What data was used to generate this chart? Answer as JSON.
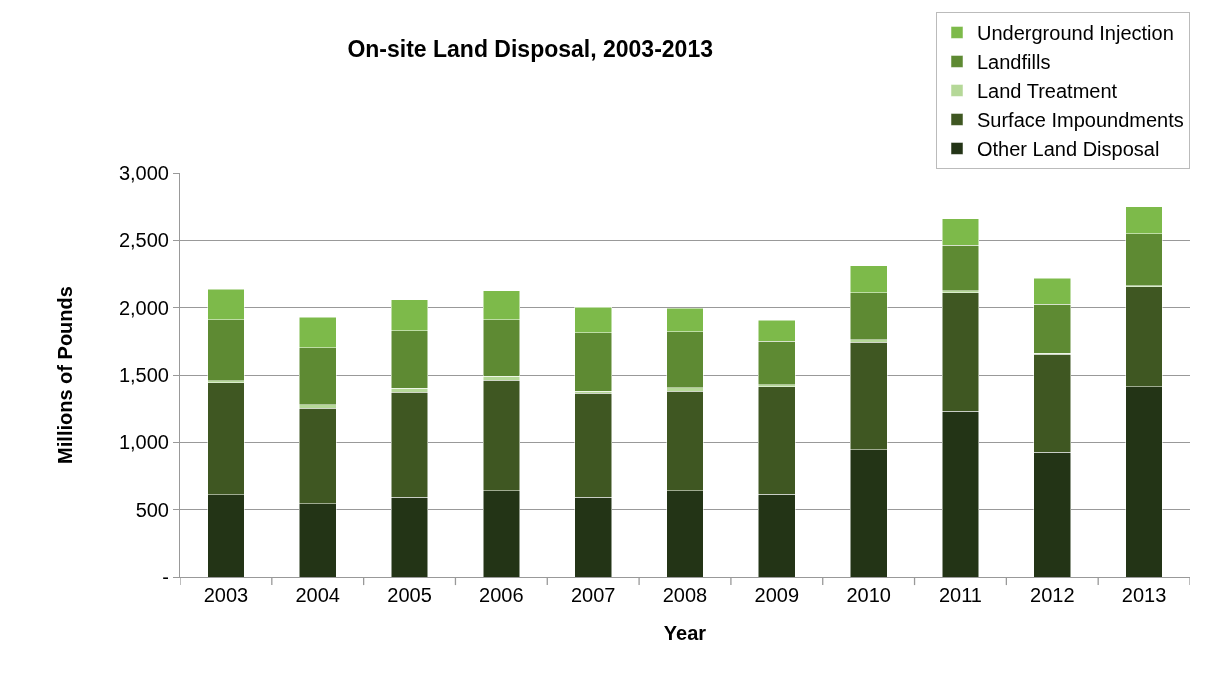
{
  "chart_data": {
    "type": "bar",
    "title": "On-site Land Disposal, 2003-2013",
    "xlabel": "Year",
    "ylabel": "Millions of Pounds",
    "categories": [
      "2003",
      "2004",
      "2005",
      "2006",
      "2007",
      "2008",
      "2009",
      "2010",
      "2011",
      "2012",
      "2013"
    ],
    "stacked": true,
    "series": [
      {
        "name": "Other Land Disposal",
        "color": "#233416",
        "values": [
          612,
          543,
          594,
          640,
          594,
          639,
          613,
          945,
          1231,
          926,
          1411
        ]
      },
      {
        "name": "Surface Impoundments",
        "color": "#3f5722",
        "values": [
          829,
          710,
          777,
          822,
          770,
          741,
          798,
          798,
          880,
          728,
          743
        ]
      },
      {
        "name": "Land Treatment",
        "color": "#b5d898",
        "values": [
          16,
          25,
          30,
          30,
          14,
          24,
          17,
          17,
          14,
          9,
          9
        ]
      },
      {
        "name": "Landfills",
        "color": "#5e8a33",
        "values": [
          452,
          425,
          427,
          417,
          434,
          416,
          322,
          351,
          339,
          364,
          385
        ]
      },
      {
        "name": "Underground Injection",
        "color": "#7dba4a",
        "values": [
          228,
          227,
          230,
          218,
          192,
          175,
          156,
          199,
          195,
          192,
          200
        ]
      }
    ],
    "ylim": [
      0,
      3000
    ],
    "yticks": [
      {
        "value": 0,
        "label": "-"
      },
      {
        "value": 500,
        "label": "500"
      },
      {
        "value": 1000,
        "label": "1,000"
      },
      {
        "value": 1500,
        "label": "1,500"
      },
      {
        "value": 2000,
        "label": "2,000"
      },
      {
        "value": 2500,
        "label": "2,500"
      },
      {
        "value": 3000,
        "label": "3,000"
      }
    ],
    "grid": "y",
    "legend": "top right"
  }
}
